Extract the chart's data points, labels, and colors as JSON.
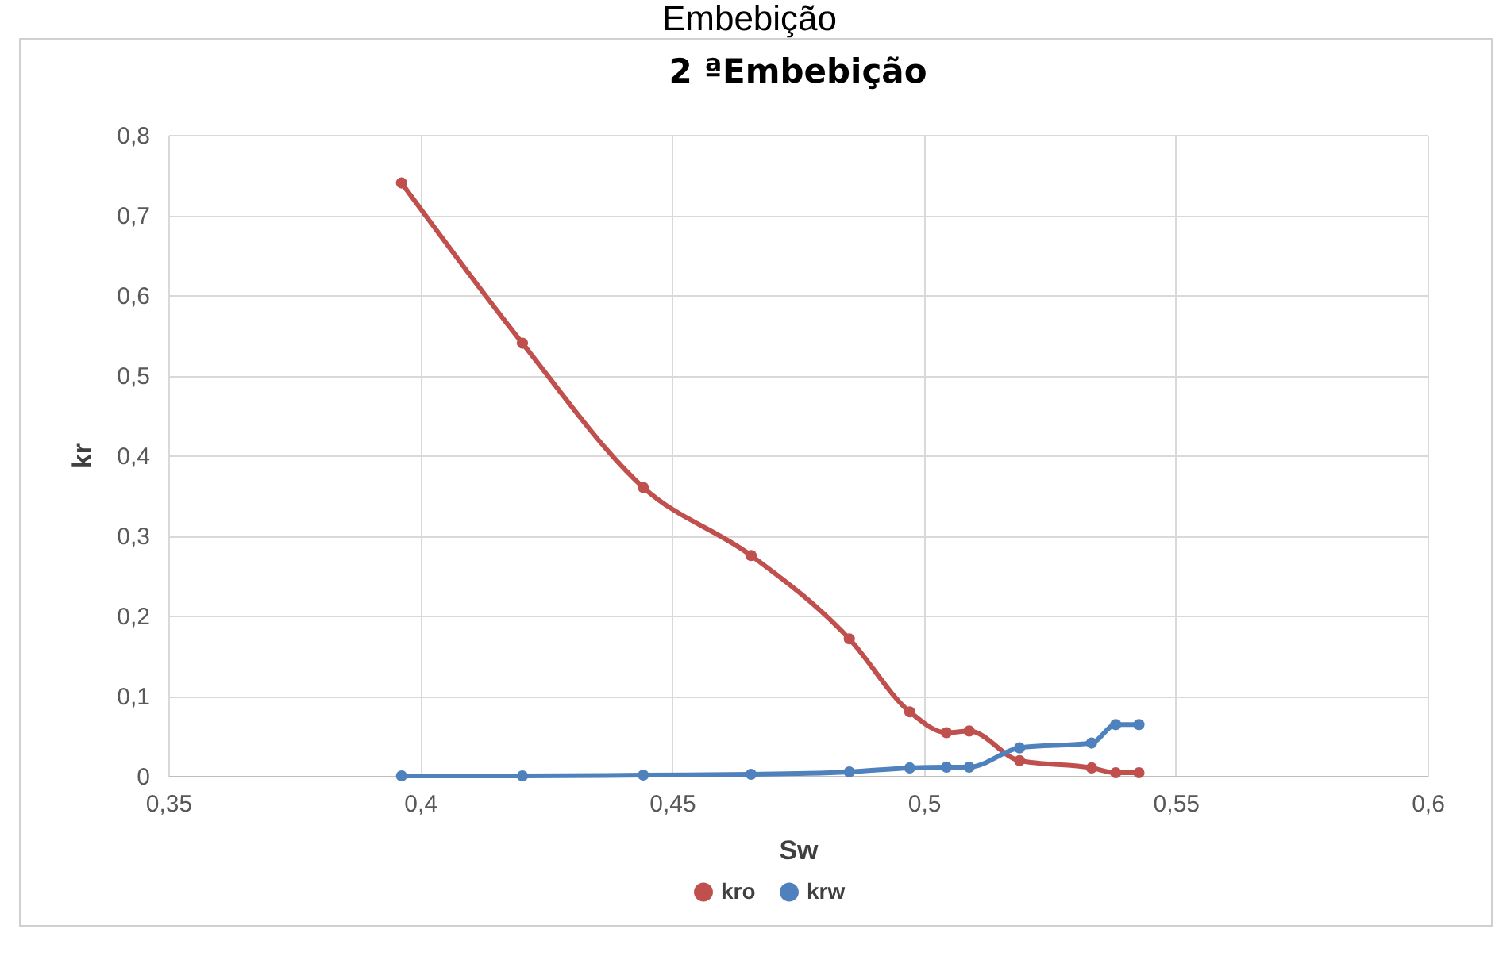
{
  "chart_data": {
    "type": "line",
    "title": "2 ªEmbebição",
    "xlabel": "Sw",
    "ylabel": "kr",
    "annotations": [
      "Embebição"
    ],
    "x": [
      0.3963,
      0.4203,
      0.4443,
      0.4657,
      0.4852,
      0.4972,
      0.5045,
      0.509,
      0.519,
      0.5333,
      0.5381,
      0.5427
    ],
    "series": [
      {
        "name": "kro",
        "color": "#c0504d",
        "values": [
          0.74,
          0.54,
          0.36,
          0.275,
          0.171,
          0.08,
          0.054,
          0.056,
          0.019,
          0.01,
          0.004,
          0.004
        ]
      },
      {
        "name": "krw",
        "color": "#4f81bd",
        "values": [
          0,
          0,
          0.001,
          0.002,
          0.005,
          0.01,
          0.011,
          0.011,
          0.035,
          0.041,
          0.064,
          0.064
        ]
      }
    ],
    "xlim": [
      0.35,
      0.6
    ],
    "xticks": [
      {
        "value": 0.35,
        "label": "0,35"
      },
      {
        "value": 0.4,
        "label": "0,4"
      },
      {
        "value": 0.45,
        "label": "0,45"
      },
      {
        "value": 0.5,
        "label": "0,5"
      },
      {
        "value": 0.55,
        "label": "0,55"
      },
      {
        "value": 0.6,
        "label": "0,6"
      }
    ],
    "ylim": [
      0,
      0.8
    ],
    "yticks": [
      0,
      {
        "value": 0.1,
        "label": "0,1"
      },
      {
        "value": 0.2,
        "label": "0,2"
      },
      {
        "value": 0.3,
        "label": "0,3"
      },
      {
        "value": 0.4,
        "label": "0,4"
      },
      {
        "value": 0.5,
        "label": "0,5"
      },
      {
        "value": 0.6,
        "label": "0,6"
      },
      {
        "value": 0.7,
        "label": "0,7"
      },
      {
        "value": 0.8,
        "label": "0,8"
      }
    ],
    "grid": true,
    "legend": "bottom",
    "marker": "circle",
    "line_style": "solid"
  }
}
